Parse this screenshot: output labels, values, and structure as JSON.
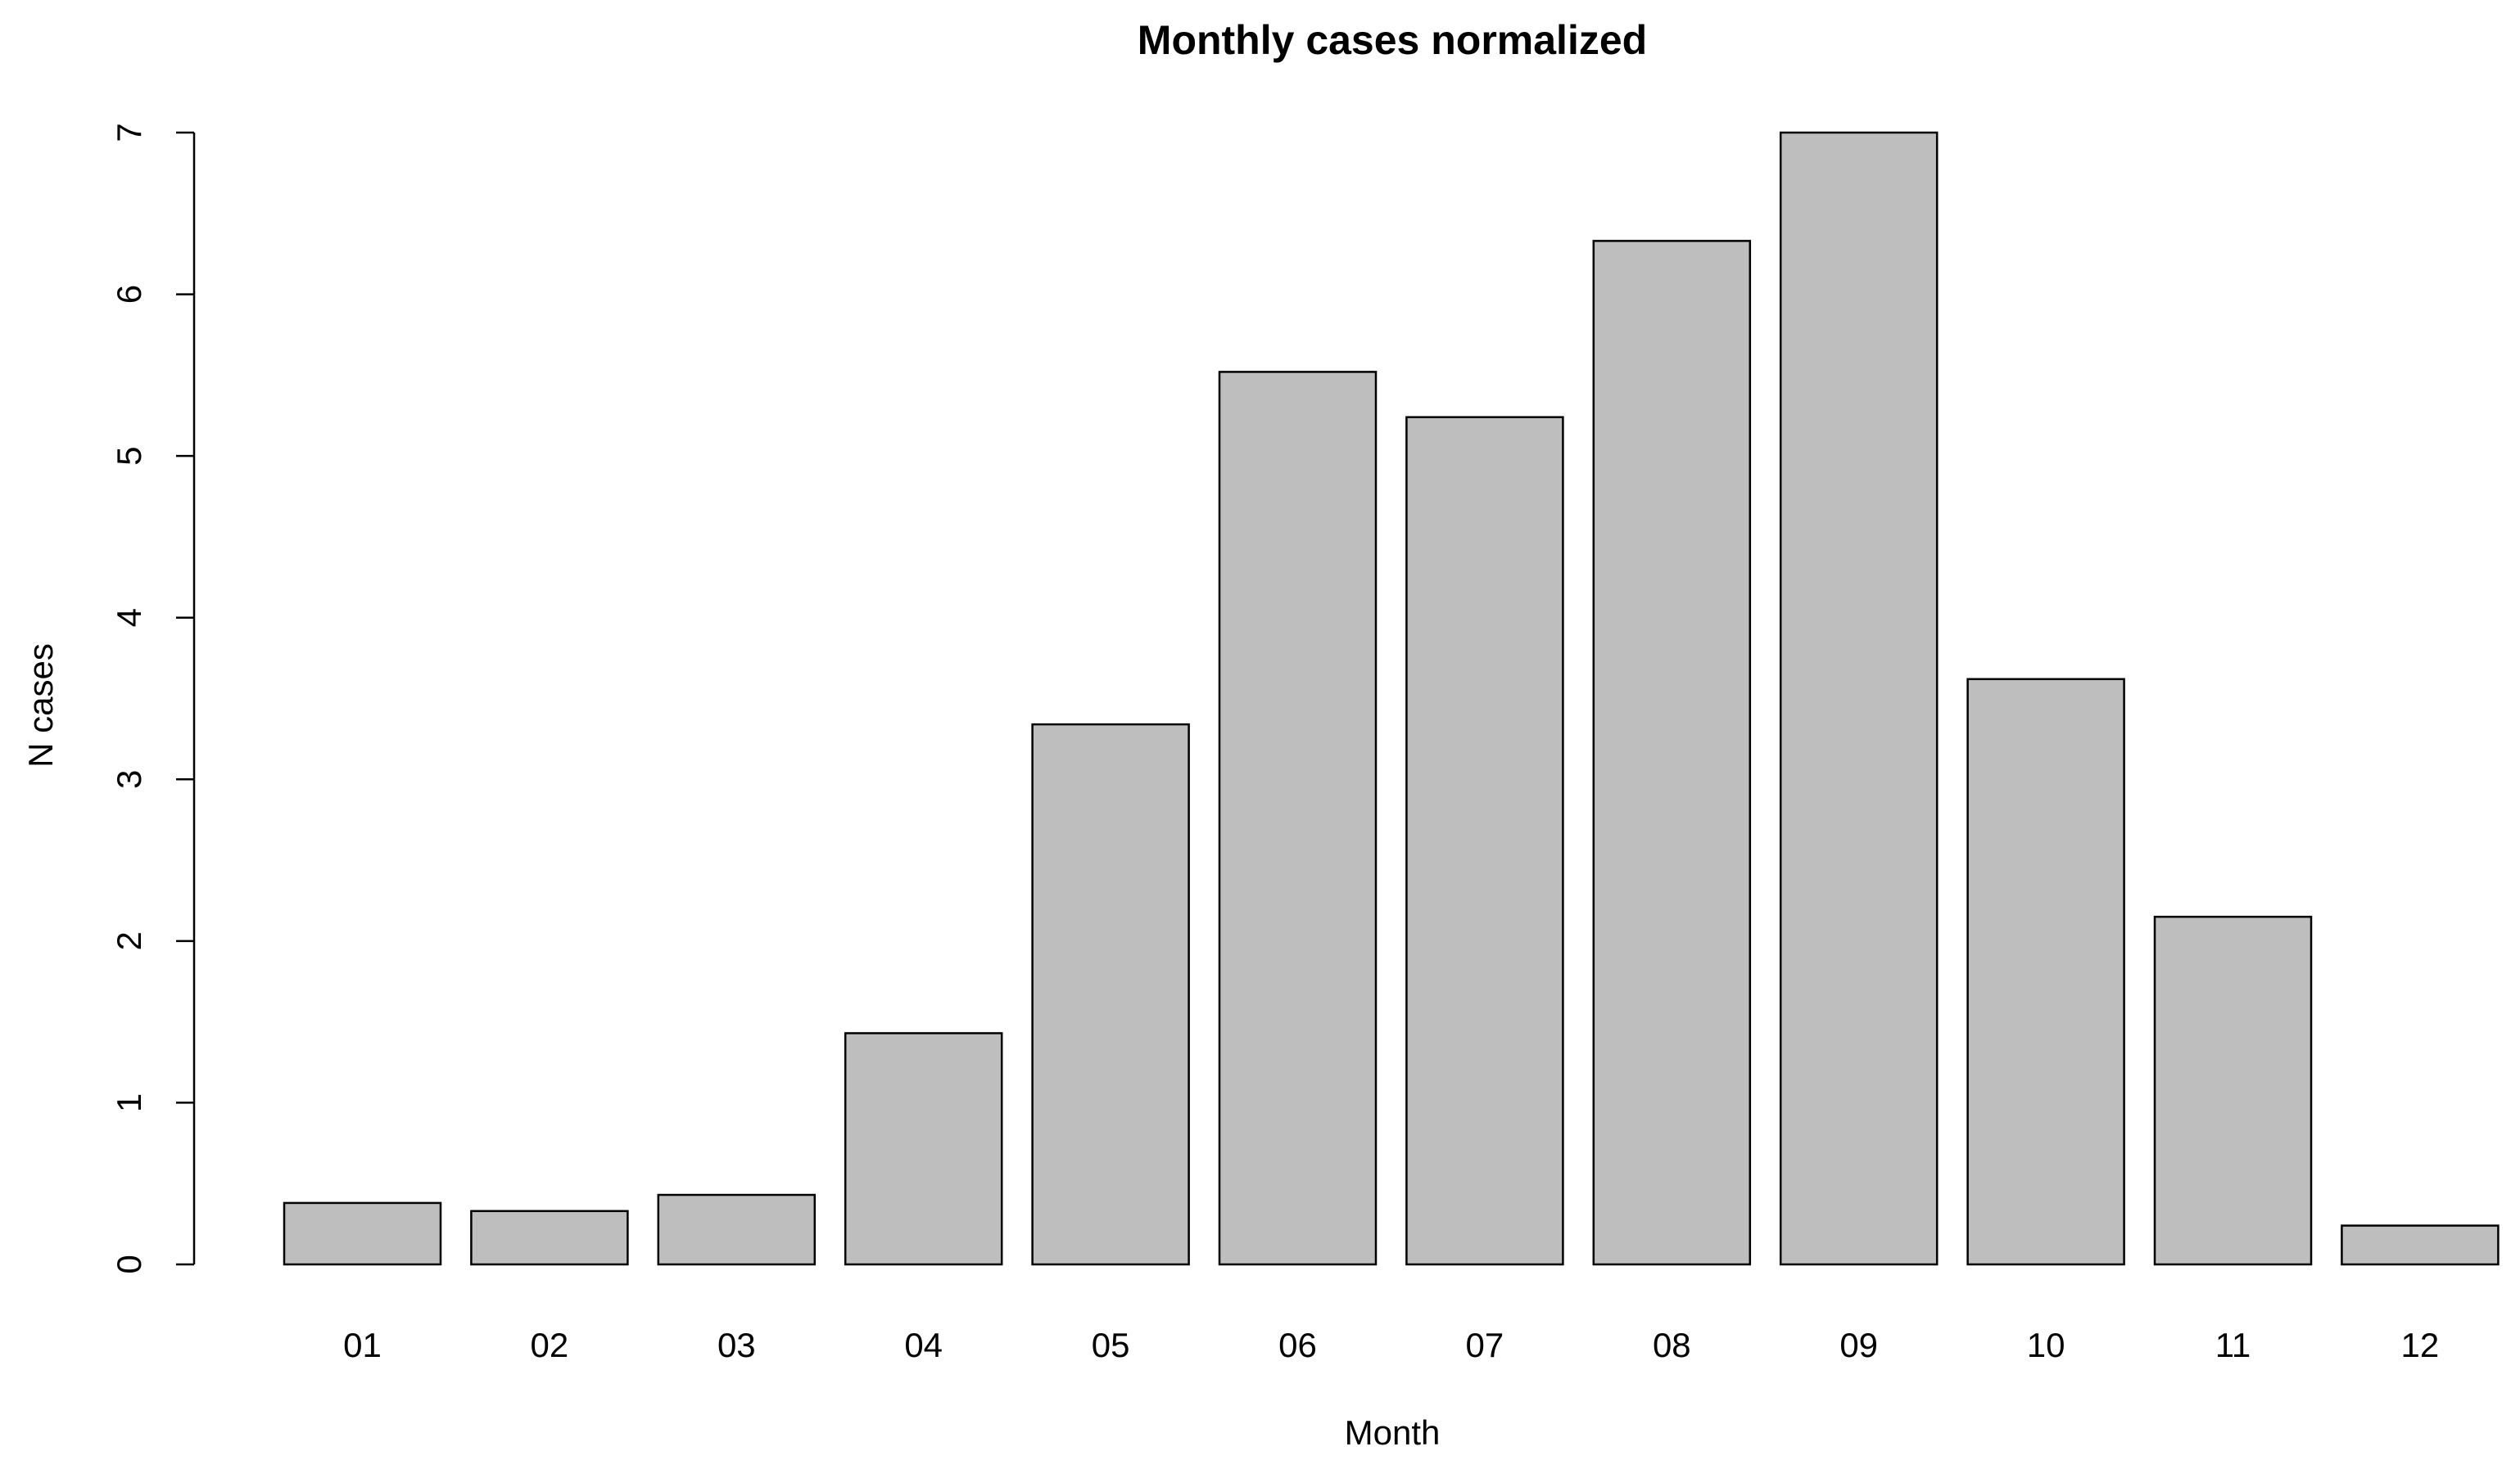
{
  "chart_data": {
    "type": "bar",
    "title": "Monthly cases normalized",
    "xlabel": "Month",
    "ylabel": "N cases",
    "categories": [
      "01",
      "02",
      "03",
      "04",
      "05",
      "06",
      "07",
      "08",
      "09",
      "10",
      "11",
      "12"
    ],
    "values": [
      0.38,
      0.33,
      0.43,
      1.43,
      3.34,
      5.52,
      5.24,
      6.33,
      7.0,
      3.62,
      2.15,
      0.24
    ],
    "ylim": [
      0,
      7
    ],
    "yticks": [
      0,
      1,
      2,
      3,
      4,
      5,
      6,
      7
    ],
    "grid": false,
    "legend": "none",
    "colors": {
      "bar_fill": "#bebebe",
      "bar_stroke": "#000000"
    }
  }
}
